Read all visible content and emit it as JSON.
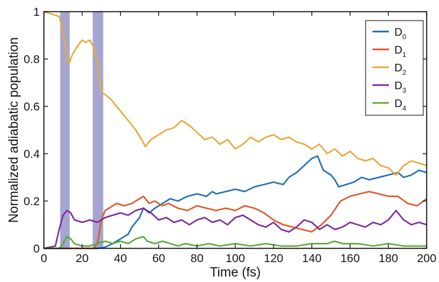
{
  "chart_data": {
    "type": "line",
    "xlabel": "Time (fs)",
    "ylabel": "Normalized adiabatic population",
    "xlim": [
      0,
      200
    ],
    "ylim": [
      0,
      1
    ],
    "x_ticks": [
      "0",
      "20",
      "40",
      "60",
      "80",
      "100",
      "120",
      "140",
      "160",
      "180",
      "200"
    ],
    "y_ticks": [
      "0",
      "0.2",
      "0.4",
      "0.6",
      "0.8",
      "1"
    ],
    "grid": false,
    "legend_position": "top-right",
    "shaded_regions": [
      {
        "x_start": 8.5,
        "x_end": 13.5,
        "color": "#8e8ec5"
      },
      {
        "x_start": 25.5,
        "x_end": 31.0,
        "color": "#8e8ec5"
      }
    ],
    "series": [
      {
        "name": "D0",
        "label_main": "D",
        "label_sub": "0",
        "color": "#1f6fb4",
        "points": [
          [
            0,
            0
          ],
          [
            28,
            0
          ],
          [
            32,
            0.005
          ],
          [
            36,
            0.02
          ],
          [
            40,
            0.04
          ],
          [
            44,
            0.06
          ],
          [
            46,
            0.09
          ],
          [
            50,
            0.13
          ],
          [
            52,
            0.17
          ],
          [
            55,
            0.15
          ],
          [
            58,
            0.17
          ],
          [
            62,
            0.19
          ],
          [
            66,
            0.21
          ],
          [
            70,
            0.2
          ],
          [
            75,
            0.22
          ],
          [
            80,
            0.23
          ],
          [
            85,
            0.22
          ],
          [
            88,
            0.24
          ],
          [
            90,
            0.23
          ],
          [
            95,
            0.24
          ],
          [
            100,
            0.25
          ],
          [
            105,
            0.24
          ],
          [
            110,
            0.26
          ],
          [
            115,
            0.27
          ],
          [
            120,
            0.28
          ],
          [
            125,
            0.27
          ],
          [
            128,
            0.3
          ],
          [
            132,
            0.32
          ],
          [
            136,
            0.35
          ],
          [
            140,
            0.38
          ],
          [
            143,
            0.39
          ],
          [
            146,
            0.33
          ],
          [
            150,
            0.31
          ],
          [
            152,
            0.29
          ],
          [
            154,
            0.26
          ],
          [
            158,
            0.27
          ],
          [
            162,
            0.28
          ],
          [
            166,
            0.3
          ],
          [
            170,
            0.29
          ],
          [
            175,
            0.3
          ],
          [
            180,
            0.31
          ],
          [
            185,
            0.32
          ],
          [
            188,
            0.3
          ],
          [
            192,
            0.31
          ],
          [
            196,
            0.33
          ],
          [
            200,
            0.32
          ]
        ]
      },
      {
        "name": "D1",
        "label_main": "D",
        "label_sub": "1",
        "color": "#e0572a",
        "points": [
          [
            0,
            0
          ],
          [
            26,
            0
          ],
          [
            28,
            0.02
          ],
          [
            30,
            0.12
          ],
          [
            32,
            0.16
          ],
          [
            34,
            0.17
          ],
          [
            38,
            0.19
          ],
          [
            42,
            0.18
          ],
          [
            46,
            0.19
          ],
          [
            50,
            0.21
          ],
          [
            52,
            0.22
          ],
          [
            55,
            0.19
          ],
          [
            58,
            0.2
          ],
          [
            62,
            0.18
          ],
          [
            65,
            0.19
          ],
          [
            70,
            0.17
          ],
          [
            75,
            0.16
          ],
          [
            80,
            0.18
          ],
          [
            85,
            0.17
          ],
          [
            90,
            0.16
          ],
          [
            95,
            0.17
          ],
          [
            100,
            0.16
          ],
          [
            105,
            0.18
          ],
          [
            110,
            0.17
          ],
          [
            115,
            0.15
          ],
          [
            120,
            0.12
          ],
          [
            125,
            0.1
          ],
          [
            130,
            0.09
          ],
          [
            135,
            0.08
          ],
          [
            140,
            0.07
          ],
          [
            145,
            0.1
          ],
          [
            150,
            0.14
          ],
          [
            155,
            0.2
          ],
          [
            160,
            0.22
          ],
          [
            165,
            0.23
          ],
          [
            170,
            0.24
          ],
          [
            175,
            0.23
          ],
          [
            180,
            0.22
          ],
          [
            185,
            0.22
          ],
          [
            190,
            0.19
          ],
          [
            195,
            0.18
          ],
          [
            200,
            0.21
          ]
        ]
      },
      {
        "name": "D2",
        "label_main": "D",
        "label_sub": "2",
        "color": "#e8a93a",
        "points": [
          [
            0,
            1
          ],
          [
            4,
            0.99
          ],
          [
            8,
            0.98
          ],
          [
            10,
            0.92
          ],
          [
            12,
            0.8
          ],
          [
            13,
            0.78
          ],
          [
            15,
            0.82
          ],
          [
            18,
            0.86
          ],
          [
            20,
            0.88
          ],
          [
            22,
            0.87
          ],
          [
            24,
            0.88
          ],
          [
            26,
            0.85
          ],
          [
            28,
            0.78
          ],
          [
            30,
            0.66
          ],
          [
            32,
            0.65
          ],
          [
            35,
            0.63
          ],
          [
            38,
            0.6
          ],
          [
            41,
            0.57
          ],
          [
            45,
            0.53
          ],
          [
            48,
            0.5
          ],
          [
            51,
            0.46
          ],
          [
            53,
            0.43
          ],
          [
            56,
            0.46
          ],
          [
            60,
            0.48
          ],
          [
            64,
            0.5
          ],
          [
            68,
            0.51
          ],
          [
            72,
            0.54
          ],
          [
            76,
            0.52
          ],
          [
            80,
            0.49
          ],
          [
            84,
            0.46
          ],
          [
            88,
            0.47
          ],
          [
            92,
            0.44
          ],
          [
            96,
            0.46
          ],
          [
            100,
            0.42
          ],
          [
            104,
            0.44
          ],
          [
            108,
            0.47
          ],
          [
            112,
            0.45
          ],
          [
            116,
            0.47
          ],
          [
            120,
            0.48
          ],
          [
            124,
            0.46
          ],
          [
            128,
            0.47
          ],
          [
            132,
            0.45
          ],
          [
            136,
            0.44
          ],
          [
            140,
            0.42
          ],
          [
            144,
            0.44
          ],
          [
            148,
            0.4
          ],
          [
            152,
            0.42
          ],
          [
            156,
            0.39
          ],
          [
            160,
            0.41
          ],
          [
            164,
            0.38
          ],
          [
            168,
            0.37
          ],
          [
            172,
            0.38
          ],
          [
            176,
            0.35
          ],
          [
            180,
            0.34
          ],
          [
            184,
            0.31
          ],
          [
            188,
            0.35
          ],
          [
            192,
            0.37
          ],
          [
            196,
            0.36
          ],
          [
            200,
            0.35
          ]
        ]
      },
      {
        "name": "D3",
        "label_main": "D",
        "label_sub": "3",
        "color": "#7d2a9c",
        "points": [
          [
            0,
            0
          ],
          [
            6,
            0.01
          ],
          [
            8,
            0.08
          ],
          [
            10,
            0.14
          ],
          [
            12,
            0.16
          ],
          [
            14,
            0.15
          ],
          [
            16,
            0.12
          ],
          [
            20,
            0.11
          ],
          [
            24,
            0.12
          ],
          [
            28,
            0.11
          ],
          [
            32,
            0.13
          ],
          [
            36,
            0.14
          ],
          [
            40,
            0.15
          ],
          [
            44,
            0.14
          ],
          [
            48,
            0.16
          ],
          [
            52,
            0.17
          ],
          [
            56,
            0.15
          ],
          [
            60,
            0.12
          ],
          [
            64,
            0.13
          ],
          [
            68,
            0.11
          ],
          [
            72,
            0.12
          ],
          [
            76,
            0.1
          ],
          [
            80,
            0.12
          ],
          [
            84,
            0.13
          ],
          [
            88,
            0.11
          ],
          [
            92,
            0.12
          ],
          [
            96,
            0.1
          ],
          [
            100,
            0.13
          ],
          [
            104,
            0.14
          ],
          [
            108,
            0.12
          ],
          [
            112,
            0.1
          ],
          [
            116,
            0.09
          ],
          [
            120,
            0.11
          ],
          [
            124,
            0.08
          ],
          [
            128,
            0.07
          ],
          [
            132,
            0.09
          ],
          [
            136,
            0.12
          ],
          [
            140,
            0.11
          ],
          [
            144,
            0.08
          ],
          [
            148,
            0.1
          ],
          [
            152,
            0.08
          ],
          [
            156,
            0.09
          ],
          [
            160,
            0.11
          ],
          [
            164,
            0.1
          ],
          [
            168,
            0.09
          ],
          [
            172,
            0.11
          ],
          [
            176,
            0.1
          ],
          [
            180,
            0.12
          ],
          [
            184,
            0.16
          ],
          [
            188,
            0.12
          ],
          [
            192,
            0.1
          ],
          [
            196,
            0.11
          ],
          [
            200,
            0.1
          ]
        ]
      },
      {
        "name": "D4",
        "label_main": "D",
        "label_sub": "4",
        "color": "#5aaa3c",
        "points": [
          [
            0,
            0
          ],
          [
            8,
            0
          ],
          [
            10,
            0.02
          ],
          [
            12,
            0.05
          ],
          [
            14,
            0.04
          ],
          [
            16,
            0.02
          ],
          [
            20,
            0.01
          ],
          [
            24,
            0.01
          ],
          [
            28,
            0.02
          ],
          [
            32,
            0.03
          ],
          [
            36,
            0.02
          ],
          [
            40,
            0.03
          ],
          [
            44,
            0.02
          ],
          [
            48,
            0.04
          ],
          [
            52,
            0.05
          ],
          [
            54,
            0.03
          ],
          [
            58,
            0.02
          ],
          [
            62,
            0.03
          ],
          [
            66,
            0.02
          ],
          [
            70,
            0.01
          ],
          [
            74,
            0.02
          ],
          [
            80,
            0.01
          ],
          [
            86,
            0.02
          ],
          [
            92,
            0.01
          ],
          [
            100,
            0.02
          ],
          [
            108,
            0.01
          ],
          [
            116,
            0.02
          ],
          [
            124,
            0.01
          ],
          [
            132,
            0.01
          ],
          [
            140,
            0.02
          ],
          [
            148,
            0.02
          ],
          [
            152,
            0.03
          ],
          [
            156,
            0.02
          ],
          [
            164,
            0.02
          ],
          [
            172,
            0.01
          ],
          [
            180,
            0.02
          ],
          [
            188,
            0.01
          ],
          [
            196,
            0.01
          ],
          [
            200,
            0.01
          ]
        ]
      }
    ]
  }
}
